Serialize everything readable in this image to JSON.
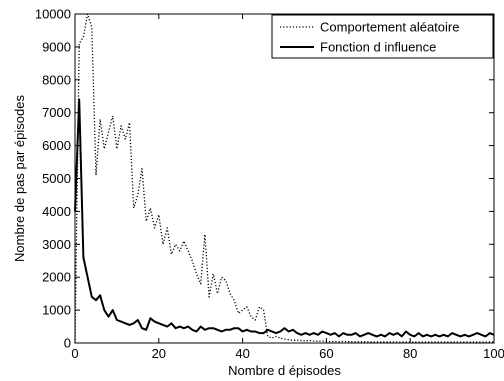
{
  "chart_data": {
    "type": "line",
    "xlabel": "Nombre d épisodes",
    "ylabel": "Nombre de pas par épisodes",
    "xlim": [
      0,
      100
    ],
    "ylim": [
      0,
      10000
    ],
    "xticks": [
      0,
      20,
      40,
      60,
      80,
      100
    ],
    "yticks": [
      0,
      1000,
      2000,
      3000,
      4000,
      5000,
      6000,
      7000,
      8000,
      9000,
      10000
    ],
    "grid": false,
    "legend_position": "top-right",
    "series": [
      {
        "name": "Comportement aléatoire",
        "style": "dotted",
        "color": "#000000",
        "x": [
          0,
          1,
          2,
          3,
          4,
          5,
          6,
          7,
          8,
          9,
          10,
          11,
          12,
          13,
          14,
          15,
          16,
          17,
          18,
          19,
          20,
          21,
          22,
          23,
          24,
          25,
          26,
          27,
          28,
          29,
          30,
          31,
          32,
          33,
          34,
          35,
          36,
          37,
          38,
          39,
          40,
          41,
          42,
          43,
          44,
          45,
          46,
          47,
          48,
          49,
          50,
          51,
          52,
          53,
          54,
          55,
          56,
          57,
          58,
          59,
          60,
          61,
          62,
          63,
          64,
          65,
          66,
          67,
          68,
          69,
          70,
          71,
          72,
          73,
          74,
          75,
          76,
          77,
          78,
          79,
          80,
          81,
          82,
          83,
          84,
          85,
          86,
          87,
          88,
          89,
          90,
          91,
          92,
          93,
          94,
          95,
          96,
          97,
          98,
          99,
          100
        ],
        "y": [
          0,
          9100,
          9300,
          10000,
          9600,
          5100,
          6800,
          5900,
          6400,
          6900,
          5900,
          6600,
          6200,
          6700,
          4100,
          4500,
          5300,
          3700,
          4100,
          3500,
          3900,
          3000,
          3500,
          2700,
          3000,
          2800,
          3100,
          2800,
          2500,
          2100,
          1800,
          3300,
          1400,
          2100,
          1500,
          2000,
          1900,
          1500,
          1300,
          900,
          1000,
          1100,
          800,
          700,
          1100,
          1000,
          200,
          150,
          200,
          150,
          120,
          100,
          80,
          90,
          70,
          60,
          80,
          60,
          50,
          60,
          50,
          40,
          50,
          40,
          50,
          40,
          40,
          35,
          40,
          35,
          40,
          30,
          35,
          30,
          35,
          30,
          30,
          30,
          30,
          30,
          30,
          30,
          30,
          30,
          30,
          30,
          30,
          30,
          30,
          30,
          30,
          30,
          30,
          30,
          30,
          30,
          30,
          30,
          30,
          30,
          30
        ]
      },
      {
        "name": "Fonction d influence",
        "style": "solid",
        "color": "#000000",
        "x": [
          0,
          1,
          2,
          3,
          4,
          5,
          6,
          7,
          8,
          9,
          10,
          11,
          12,
          13,
          14,
          15,
          16,
          17,
          18,
          19,
          20,
          21,
          22,
          23,
          24,
          25,
          26,
          27,
          28,
          29,
          30,
          31,
          32,
          33,
          34,
          35,
          36,
          37,
          38,
          39,
          40,
          41,
          42,
          43,
          44,
          45,
          46,
          47,
          48,
          49,
          50,
          51,
          52,
          53,
          54,
          55,
          56,
          57,
          58,
          59,
          60,
          61,
          62,
          63,
          64,
          65,
          66,
          67,
          68,
          69,
          70,
          71,
          72,
          73,
          74,
          75,
          76,
          77,
          78,
          79,
          80,
          81,
          82,
          83,
          84,
          85,
          86,
          87,
          88,
          89,
          90,
          91,
          92,
          93,
          94,
          95,
          96,
          97,
          98,
          99,
          100
        ],
        "y": [
          4000,
          7400,
          2600,
          2000,
          1400,
          1300,
          1450,
          1000,
          800,
          1000,
          700,
          650,
          600,
          550,
          600,
          700,
          450,
          400,
          750,
          650,
          600,
          550,
          500,
          600,
          450,
          500,
          450,
          500,
          400,
          350,
          500,
          400,
          450,
          450,
          400,
          350,
          400,
          400,
          450,
          450,
          350,
          400,
          350,
          350,
          300,
          300,
          400,
          350,
          300,
          350,
          450,
          350,
          400,
          300,
          250,
          300,
          250,
          300,
          250,
          350,
          300,
          250,
          300,
          200,
          300,
          250,
          250,
          300,
          200,
          250,
          300,
          250,
          200,
          250,
          200,
          300,
          250,
          300,
          200,
          350,
          250,
          200,
          300,
          200,
          250,
          200,
          250,
          200,
          250,
          200,
          300,
          250,
          200,
          250,
          200,
          250,
          300,
          250,
          200,
          300,
          250
        ]
      }
    ]
  }
}
